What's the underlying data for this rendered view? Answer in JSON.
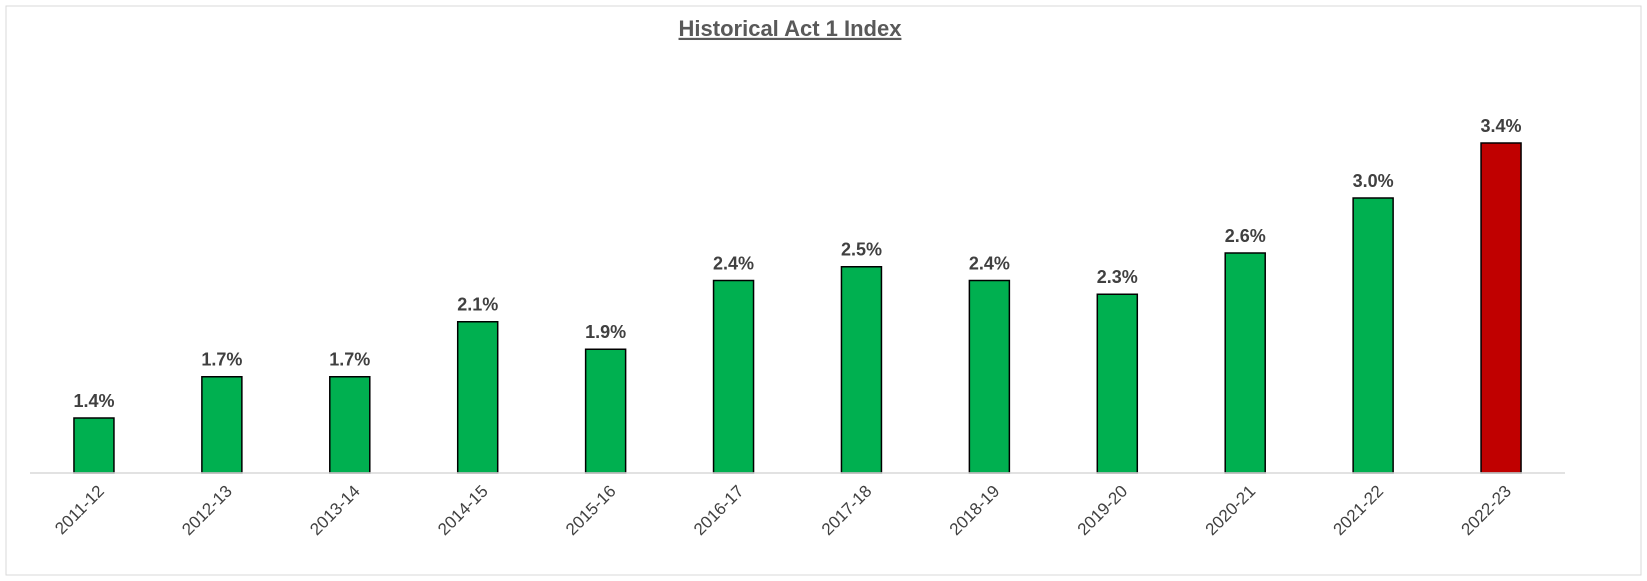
{
  "chart_data": {
    "type": "bar",
    "title": "Historical Act 1 Index",
    "categories": [
      "2011-12",
      "2012-13",
      "2013-14",
      "2014-15",
      "2015-16",
      "2016-17",
      "2017-18",
      "2018-19",
      "2019-20",
      "2020-21",
      "2021-22",
      "2022-23"
    ],
    "values": [
      1.4,
      1.7,
      1.7,
      2.1,
      1.9,
      2.4,
      2.5,
      2.4,
      2.3,
      2.6,
      3.0,
      3.4
    ],
    "value_labels": [
      "1.4%",
      "1.7%",
      "1.7%",
      "2.1%",
      "1.9%",
      "2.4%",
      "2.5%",
      "2.4%",
      "2.3%",
      "2.6%",
      "3.0%",
      "3.4%"
    ],
    "colors": [
      "#00b050",
      "#00b050",
      "#00b050",
      "#00b050",
      "#00b050",
      "#00b050",
      "#00b050",
      "#00b050",
      "#00b050",
      "#00b050",
      "#00b050",
      "#c00000"
    ],
    "ylim": [
      1,
      4
    ]
  }
}
